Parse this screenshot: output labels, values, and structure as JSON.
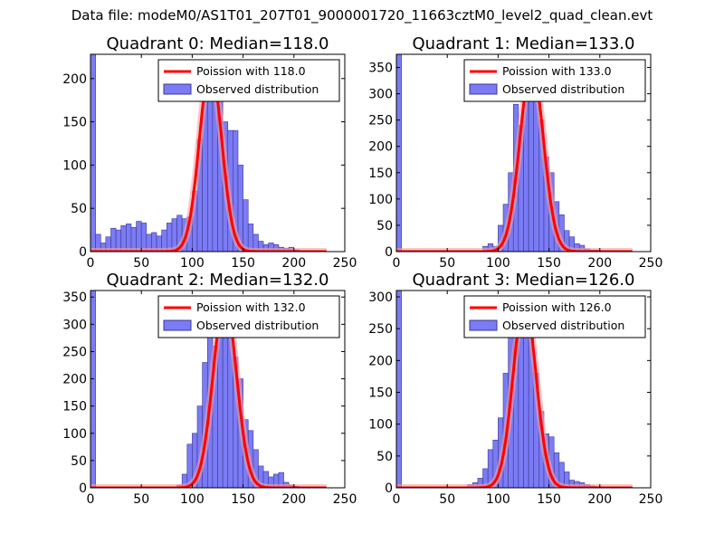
{
  "figure_title": "Data file: modeM0/AS1T01_207T01_9000001720_11663cztM0_level2_quad_clean.evt",
  "colors": {
    "bar_fill": "#7b7bf5",
    "bar_edge": "#3a3a90",
    "curve": "#ff0000",
    "curve_halo": "#f6a0a0"
  },
  "legend": {
    "placement": "top-right"
  },
  "chart_data": [
    {
      "type": "bar",
      "title": "Quadrant 0: Median=118.0",
      "xlim": [
        0,
        250
      ],
      "ylim": [
        0,
        228
      ],
      "xticks": [
        "0",
        "50",
        "100",
        "150",
        "200",
        "250"
      ],
      "yticks": [
        "0",
        "50",
        "100",
        "150",
        "200"
      ],
      "ytick_values": [
        0,
        50,
        100,
        150,
        200
      ],
      "legend": [
        "Poission with 118.0",
        "Observed distribution"
      ],
      "curve_mean": 118.0,
      "curve_peak": 215,
      "curve_sigma": 10.9,
      "bin_width": 5,
      "bars": [
        [
          0,
          228
        ],
        [
          5,
          20
        ],
        [
          10,
          10
        ],
        [
          15,
          17
        ],
        [
          20,
          27
        ],
        [
          25,
          25
        ],
        [
          30,
          30
        ],
        [
          35,
          32
        ],
        [
          40,
          28
        ],
        [
          45,
          35
        ],
        [
          50,
          33
        ],
        [
          55,
          20
        ],
        [
          60,
          22
        ],
        [
          65,
          18
        ],
        [
          70,
          25
        ],
        [
          75,
          33
        ],
        [
          80,
          38
        ],
        [
          85,
          42
        ],
        [
          90,
          38
        ],
        [
          95,
          40
        ],
        [
          100,
          70
        ],
        [
          105,
          130
        ],
        [
          110,
          195
        ],
        [
          115,
          215
        ],
        [
          120,
          195
        ],
        [
          125,
          180
        ],
        [
          130,
          150
        ],
        [
          135,
          140
        ],
        [
          140,
          140
        ],
        [
          145,
          100
        ],
        [
          150,
          60
        ],
        [
          155,
          32
        ],
        [
          160,
          20
        ],
        [
          165,
          12
        ],
        [
          170,
          8
        ],
        [
          175,
          10
        ],
        [
          180,
          8
        ],
        [
          185,
          5
        ],
        [
          190,
          4
        ],
        [
          195,
          5
        ],
        [
          200,
          2
        ],
        [
          205,
          1
        ],
        [
          210,
          1
        ]
      ]
    },
    {
      "type": "bar",
      "title": "Quadrant 1: Median=133.0",
      "xlim": [
        0,
        250
      ],
      "ylim": [
        0,
        375
      ],
      "xticks": [
        "0",
        "50",
        "100",
        "150",
        "200",
        "250"
      ],
      "yticks": [
        "0",
        "50",
        "100",
        "150",
        "200",
        "250",
        "300",
        "350"
      ],
      "ytick_values": [
        0,
        50,
        100,
        150,
        200,
        250,
        300,
        350
      ],
      "legend": [
        "Poission with 133.0",
        "Observed distribution"
      ],
      "curve_mean": 133.0,
      "curve_peak": 355,
      "curve_sigma": 11.5,
      "bin_width": 5,
      "bars": [
        [
          0,
          375
        ],
        [
          85,
          10
        ],
        [
          90,
          15
        ],
        [
          95,
          10
        ],
        [
          100,
          50
        ],
        [
          105,
          90
        ],
        [
          110,
          150
        ],
        [
          115,
          280
        ],
        [
          120,
          240
        ],
        [
          125,
          300
        ],
        [
          130,
          350
        ],
        [
          135,
          325
        ],
        [
          140,
          250
        ],
        [
          145,
          180
        ],
        [
          150,
          150
        ],
        [
          155,
          95
        ],
        [
          160,
          70
        ],
        [
          165,
          40
        ],
        [
          170,
          28
        ],
        [
          175,
          15
        ],
        [
          180,
          12
        ],
        [
          185,
          5
        ],
        [
          190,
          3
        ],
        [
          195,
          3
        ],
        [
          200,
          2
        ],
        [
          205,
          1
        ],
        [
          210,
          1
        ]
      ]
    },
    {
      "type": "bar",
      "title": "Quadrant 2: Median=132.0",
      "xlim": [
        0,
        250
      ],
      "ylim": [
        0,
        362
      ],
      "xticks": [
        "0",
        "50",
        "100",
        "150",
        "200",
        "250"
      ],
      "yticks": [
        "0",
        "50",
        "100",
        "150",
        "200",
        "250",
        "300",
        "350"
      ],
      "ytick_values": [
        0,
        50,
        100,
        150,
        200,
        250,
        300,
        350
      ],
      "legend": [
        "Poission with 132.0",
        "Observed distribution"
      ],
      "curve_mean": 132.0,
      "curve_peak": 345,
      "curve_sigma": 11.5,
      "bin_width": 5,
      "bars": [
        [
          0,
          362
        ],
        [
          85,
          5
        ],
        [
          90,
          25
        ],
        [
          95,
          80
        ],
        [
          100,
          100
        ],
        [
          105,
          150
        ],
        [
          110,
          230
        ],
        [
          115,
          320
        ],
        [
          120,
          260
        ],
        [
          125,
          300
        ],
        [
          130,
          340
        ],
        [
          135,
          310
        ],
        [
          140,
          240
        ],
        [
          145,
          200
        ],
        [
          150,
          125
        ],
        [
          155,
          105
        ],
        [
          160,
          70
        ],
        [
          165,
          40
        ],
        [
          170,
          30
        ],
        [
          175,
          20
        ],
        [
          180,
          25
        ],
        [
          185,
          28
        ],
        [
          190,
          10
        ],
        [
          195,
          5
        ],
        [
          200,
          3
        ],
        [
          205,
          1
        ],
        [
          210,
          1
        ]
      ]
    },
    {
      "type": "bar",
      "title": "Quadrant 3: Median=126.0",
      "xlim": [
        0,
        250
      ],
      "ylim": [
        0,
        310
      ],
      "xticks": [
        "0",
        "50",
        "100",
        "150",
        "200",
        "250"
      ],
      "yticks": [
        "0",
        "50",
        "100",
        "150",
        "200",
        "250",
        "300"
      ],
      "ytick_values": [
        0,
        50,
        100,
        150,
        200,
        250,
        300
      ],
      "legend": [
        "Poission with 126.0",
        "Observed distribution"
      ],
      "curve_mean": 126.0,
      "curve_peak": 295,
      "curve_sigma": 11.2,
      "bin_width": 5,
      "bars": [
        [
          0,
          310
        ],
        [
          70,
          5
        ],
        [
          75,
          8
        ],
        [
          80,
          15
        ],
        [
          85,
          30
        ],
        [
          90,
          60
        ],
        [
          95,
          75
        ],
        [
          100,
          110
        ],
        [
          105,
          180
        ],
        [
          110,
          270
        ],
        [
          115,
          250
        ],
        [
          120,
          285
        ],
        [
          125,
          295
        ],
        [
          130,
          255
        ],
        [
          135,
          180
        ],
        [
          140,
          120
        ],
        [
          145,
          85
        ],
        [
          150,
          80
        ],
        [
          155,
          55
        ],
        [
          160,
          40
        ],
        [
          165,
          25
        ],
        [
          170,
          12
        ],
        [
          175,
          10
        ],
        [
          180,
          8
        ],
        [
          185,
          5
        ],
        [
          190,
          3
        ],
        [
          195,
          2
        ],
        [
          200,
          1
        ]
      ]
    }
  ]
}
